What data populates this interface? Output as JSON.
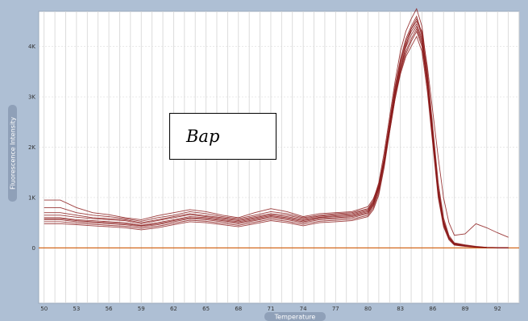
{
  "chart_data": {
    "type": "line",
    "title": "",
    "xlabel": "Temperature",
    "ylabel": "Fluorescence Intensity",
    "annotation": "Bap",
    "x_ticks": [
      50,
      53,
      56,
      59,
      62,
      65,
      68,
      71,
      74,
      77,
      80,
      83,
      86,
      89,
      92
    ],
    "x_tick_labels": [
      "50",
      "53",
      "56",
      "59",
      "62",
      "65",
      "68",
      "71",
      "74",
      "77",
      "80",
      "83",
      "86",
      "89",
      "92"
    ],
    "y_ticks": [
      0,
      1000,
      2000,
      3000,
      4000
    ],
    "y_tick_labels": [
      "0",
      "1K",
      "2K",
      "3K",
      "4K"
    ],
    "xlim": [
      49.5,
      94
    ],
    "ylim": [
      -1100,
      4700
    ],
    "grid": true,
    "legend": "none",
    "colors": {
      "series": "#8b1a1a",
      "baseline": "#d2691e",
      "axis_bar": "#8fa0b8"
    },
    "x": [
      50,
      51.5,
      53,
      54.5,
      56,
      57.5,
      59,
      60.5,
      62,
      63.5,
      65,
      66.5,
      68,
      69.5,
      71,
      72.5,
      74,
      75.5,
      77,
      78.5,
      80,
      80.5,
      81,
      81.5,
      82,
      82.5,
      83,
      83.5,
      84,
      84.5,
      85,
      85.5,
      86,
      86.5,
      87,
      87.5,
      88,
      89,
      90,
      91,
      92,
      93
    ],
    "series": [
      {
        "values": [
          950,
          950,
          800,
          700,
          660,
          600,
          560,
          640,
          700,
          760,
          720,
          650,
          600,
          700,
          780,
          720,
          620,
          680,
          700,
          720,
          820,
          980,
          1250,
          1700,
          2300,
          2950,
          3500,
          4000,
          4350,
          4500,
          4300,
          3600,
          2700,
          1800,
          1000,
          500,
          250,
          280,
          480,
          400,
          300,
          210
        ]
      },
      {
        "values": [
          800,
          800,
          700,
          650,
          620,
          580,
          530,
          600,
          650,
          720,
          680,
          620,
          580,
          650,
          720,
          680,
          600,
          650,
          680,
          700,
          780,
          950,
          1300,
          1900,
          2600,
          3300,
          3900,
          4300,
          4550,
          4750,
          4400,
          3500,
          2400,
          1300,
          600,
          250,
          100,
          60,
          30,
          10,
          5,
          0
        ]
      },
      {
        "values": [
          700,
          700,
          650,
          600,
          580,
          560,
          500,
          560,
          620,
          680,
          640,
          600,
          560,
          620,
          680,
          650,
          580,
          630,
          660,
          680,
          760,
          920,
          1250,
          1800,
          2500,
          3200,
          3750,
          4150,
          4400,
          4600,
          4250,
          3400,
          2300,
          1200,
          550,
          220,
          90,
          50,
          25,
          10,
          5,
          0
        ]
      },
      {
        "values": [
          600,
          600,
          560,
          540,
          520,
          500,
          450,
          500,
          560,
          620,
          600,
          560,
          520,
          580,
          640,
          600,
          540,
          600,
          620,
          640,
          720,
          880,
          1200,
          1750,
          2450,
          3100,
          3650,
          4050,
          4300,
          4450,
          4150,
          3300,
          2200,
          1150,
          500,
          200,
          80,
          45,
          20,
          8,
          3,
          0
        ]
      },
      {
        "values": [
          560,
          560,
          520,
          500,
          480,
          460,
          420,
          460,
          520,
          580,
          560,
          520,
          480,
          540,
          600,
          560,
          500,
          560,
          580,
          600,
          680,
          840,
          1150,
          1700,
          2400,
          3050,
          3550,
          3900,
          4150,
          4350,
          4050,
          3250,
          2150,
          1100,
          480,
          190,
          70,
          40,
          20,
          8,
          3,
          0
        ]
      },
      {
        "values": [
          520,
          520,
          490,
          470,
          450,
          430,
          390,
          430,
          490,
          550,
          530,
          490,
          450,
          510,
          570,
          530,
          470,
          530,
          550,
          570,
          650,
          800,
          1100,
          1650,
          2350,
          3000,
          3500,
          3850,
          4100,
          4300,
          4000,
          3200,
          2100,
          1050,
          450,
          180,
          60,
          35,
          15,
          5,
          2,
          0
        ]
      },
      {
        "values": [
          480,
          480,
          460,
          440,
          420,
          400,
          360,
          400,
          460,
          520,
          500,
          460,
          420,
          480,
          540,
          500,
          440,
          500,
          520,
          540,
          620,
          760,
          1050,
          1600,
          2300,
          2950,
          3450,
          3800,
          4000,
          4200,
          3900,
          3100,
          2050,
          1000,
          420,
          160,
          55,
          30,
          12,
          4,
          2,
          0
        ]
      },
      {
        "values": [
          650,
          650,
          610,
          580,
          560,
          540,
          480,
          540,
          600,
          660,
          620,
          580,
          540,
          600,
          660,
          620,
          560,
          610,
          640,
          660,
          740,
          900,
          1220,
          1780,
          2480,
          3150,
          3700,
          4100,
          4350,
          4550,
          4200,
          3380,
          2280,
          1180,
          530,
          210,
          85,
          48,
          22,
          9,
          4,
          0
        ]
      },
      {
        "values": [
          580,
          580,
          540,
          520,
          500,
          480,
          440,
          480,
          540,
          600,
          580,
          540,
          500,
          560,
          620,
          580,
          520,
          580,
          600,
          620,
          700,
          860,
          1180,
          1720,
          2420,
          3080,
          3600,
          3980,
          4230,
          4400,
          4100,
          3280,
          2180,
          1120,
          490,
          195,
          75,
          42,
          18,
          7,
          3,
          0
        ]
      }
    ],
    "baseline": 0
  }
}
